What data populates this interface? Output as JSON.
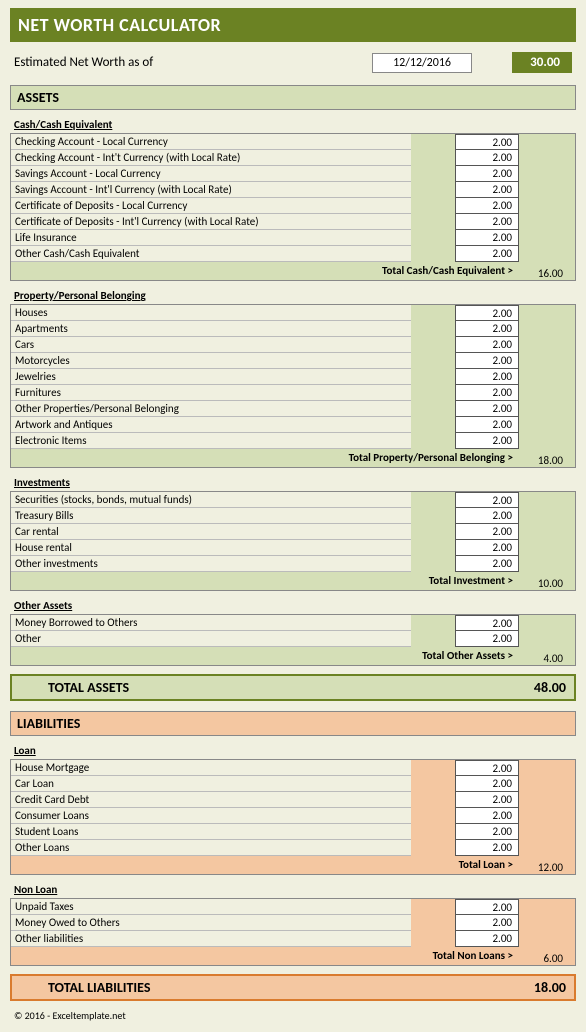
{
  "title": "NET WORTH CALCULATOR",
  "estimated_label": "Estimated Net Worth as of",
  "date": "12/12/2016",
  "net_worth": "30.00",
  "assets": {
    "header": "ASSETS",
    "groups": [
      {
        "title": "Cash/Cash Equivalent",
        "items": [
          {
            "label": "Checking Account - Local Currency",
            "value": "2.00"
          },
          {
            "label": "Checking Account - Int't Currency (with Local Rate)",
            "value": "2.00"
          },
          {
            "label": "Savings Account - Local Currency",
            "value": "2.00"
          },
          {
            "label": "Savings Account - Int'l Currency (with Local Rate)",
            "value": "2.00"
          },
          {
            "label": "Certificate of Deposits - Local Currency",
            "value": "2.00"
          },
          {
            "label": "Certificate of Deposits - Int'l Currency (with Local Rate)",
            "value": "2.00"
          },
          {
            "label": "Life Insurance",
            "value": "2.00"
          },
          {
            "label": "Other Cash/Cash Equivalent",
            "value": "2.00"
          }
        ],
        "total_label": "Total Cash/Cash Equivalent >",
        "total": "16.00"
      },
      {
        "title": "Property/Personal Belonging",
        "items": [
          {
            "label": "Houses",
            "value": "2.00"
          },
          {
            "label": "Apartments",
            "value": "2.00"
          },
          {
            "label": "Cars",
            "value": "2.00"
          },
          {
            "label": "Motorcycles",
            "value": "2.00"
          },
          {
            "label": "Jewelries",
            "value": "2.00"
          },
          {
            "label": "Furnitures",
            "value": "2.00"
          },
          {
            "label": "Other Properties/Personal Belonging",
            "value": "2.00"
          },
          {
            "label": "Artwork and Antiques",
            "value": "2.00"
          },
          {
            "label": "Electronic Items",
            "value": "2.00"
          }
        ],
        "total_label": "Total Property/Personal Belonging >",
        "total": "18.00"
      },
      {
        "title": "Investments",
        "items": [
          {
            "label": "Securities (stocks, bonds, mutual funds)",
            "value": "2.00"
          },
          {
            "label": "Treasury Bills",
            "value": "2.00"
          },
          {
            "label": "Car rental",
            "value": "2.00"
          },
          {
            "label": "House rental",
            "value": "2.00"
          },
          {
            "label": "Other investments",
            "value": "2.00"
          }
        ],
        "total_label": "Total Investment >",
        "total": "10.00"
      },
      {
        "title": "Other Assets",
        "items": [
          {
            "label": "Money Borrowed to Others",
            "value": "2.00"
          },
          {
            "label": "Other",
            "value": "2.00"
          }
        ],
        "total_label": "Total Other Assets >",
        "total": "4.00"
      }
    ],
    "grand_total_label": "TOTAL ASSETS",
    "grand_total": "48.00"
  },
  "liabilities": {
    "header": "LIABILITIES",
    "groups": [
      {
        "title": "Loan",
        "items": [
          {
            "label": "House Mortgage",
            "value": "2.00"
          },
          {
            "label": "Car Loan",
            "value": "2.00"
          },
          {
            "label": "Credit Card Debt",
            "value": "2.00"
          },
          {
            "label": "Consumer Loans",
            "value": "2.00"
          },
          {
            "label": "Student Loans",
            "value": "2.00"
          },
          {
            "label": "Other Loans",
            "value": "2.00"
          }
        ],
        "total_label": "Total Loan >",
        "total": "12.00"
      },
      {
        "title": "Non Loan",
        "items": [
          {
            "label": "Unpaid Taxes",
            "value": "2.00"
          },
          {
            "label": "Money Owed to Others",
            "value": "2.00"
          },
          {
            "label": "Other liabilities",
            "value": "2.00"
          }
        ],
        "total_label": "Total Non Loans >",
        "total": "6.00"
      }
    ],
    "grand_total_label": "TOTAL LIABILITIES",
    "grand_total": "18.00"
  },
  "footer": "© 2016 - Exceltemplate.net",
  "colors": {
    "page_bg": "#f0f0e0",
    "title_bg": "#6b8223",
    "assets_bg": "#d5dfb7",
    "liabilities_bg": "#f4c7a1",
    "liab_border": "#d97b2e"
  }
}
